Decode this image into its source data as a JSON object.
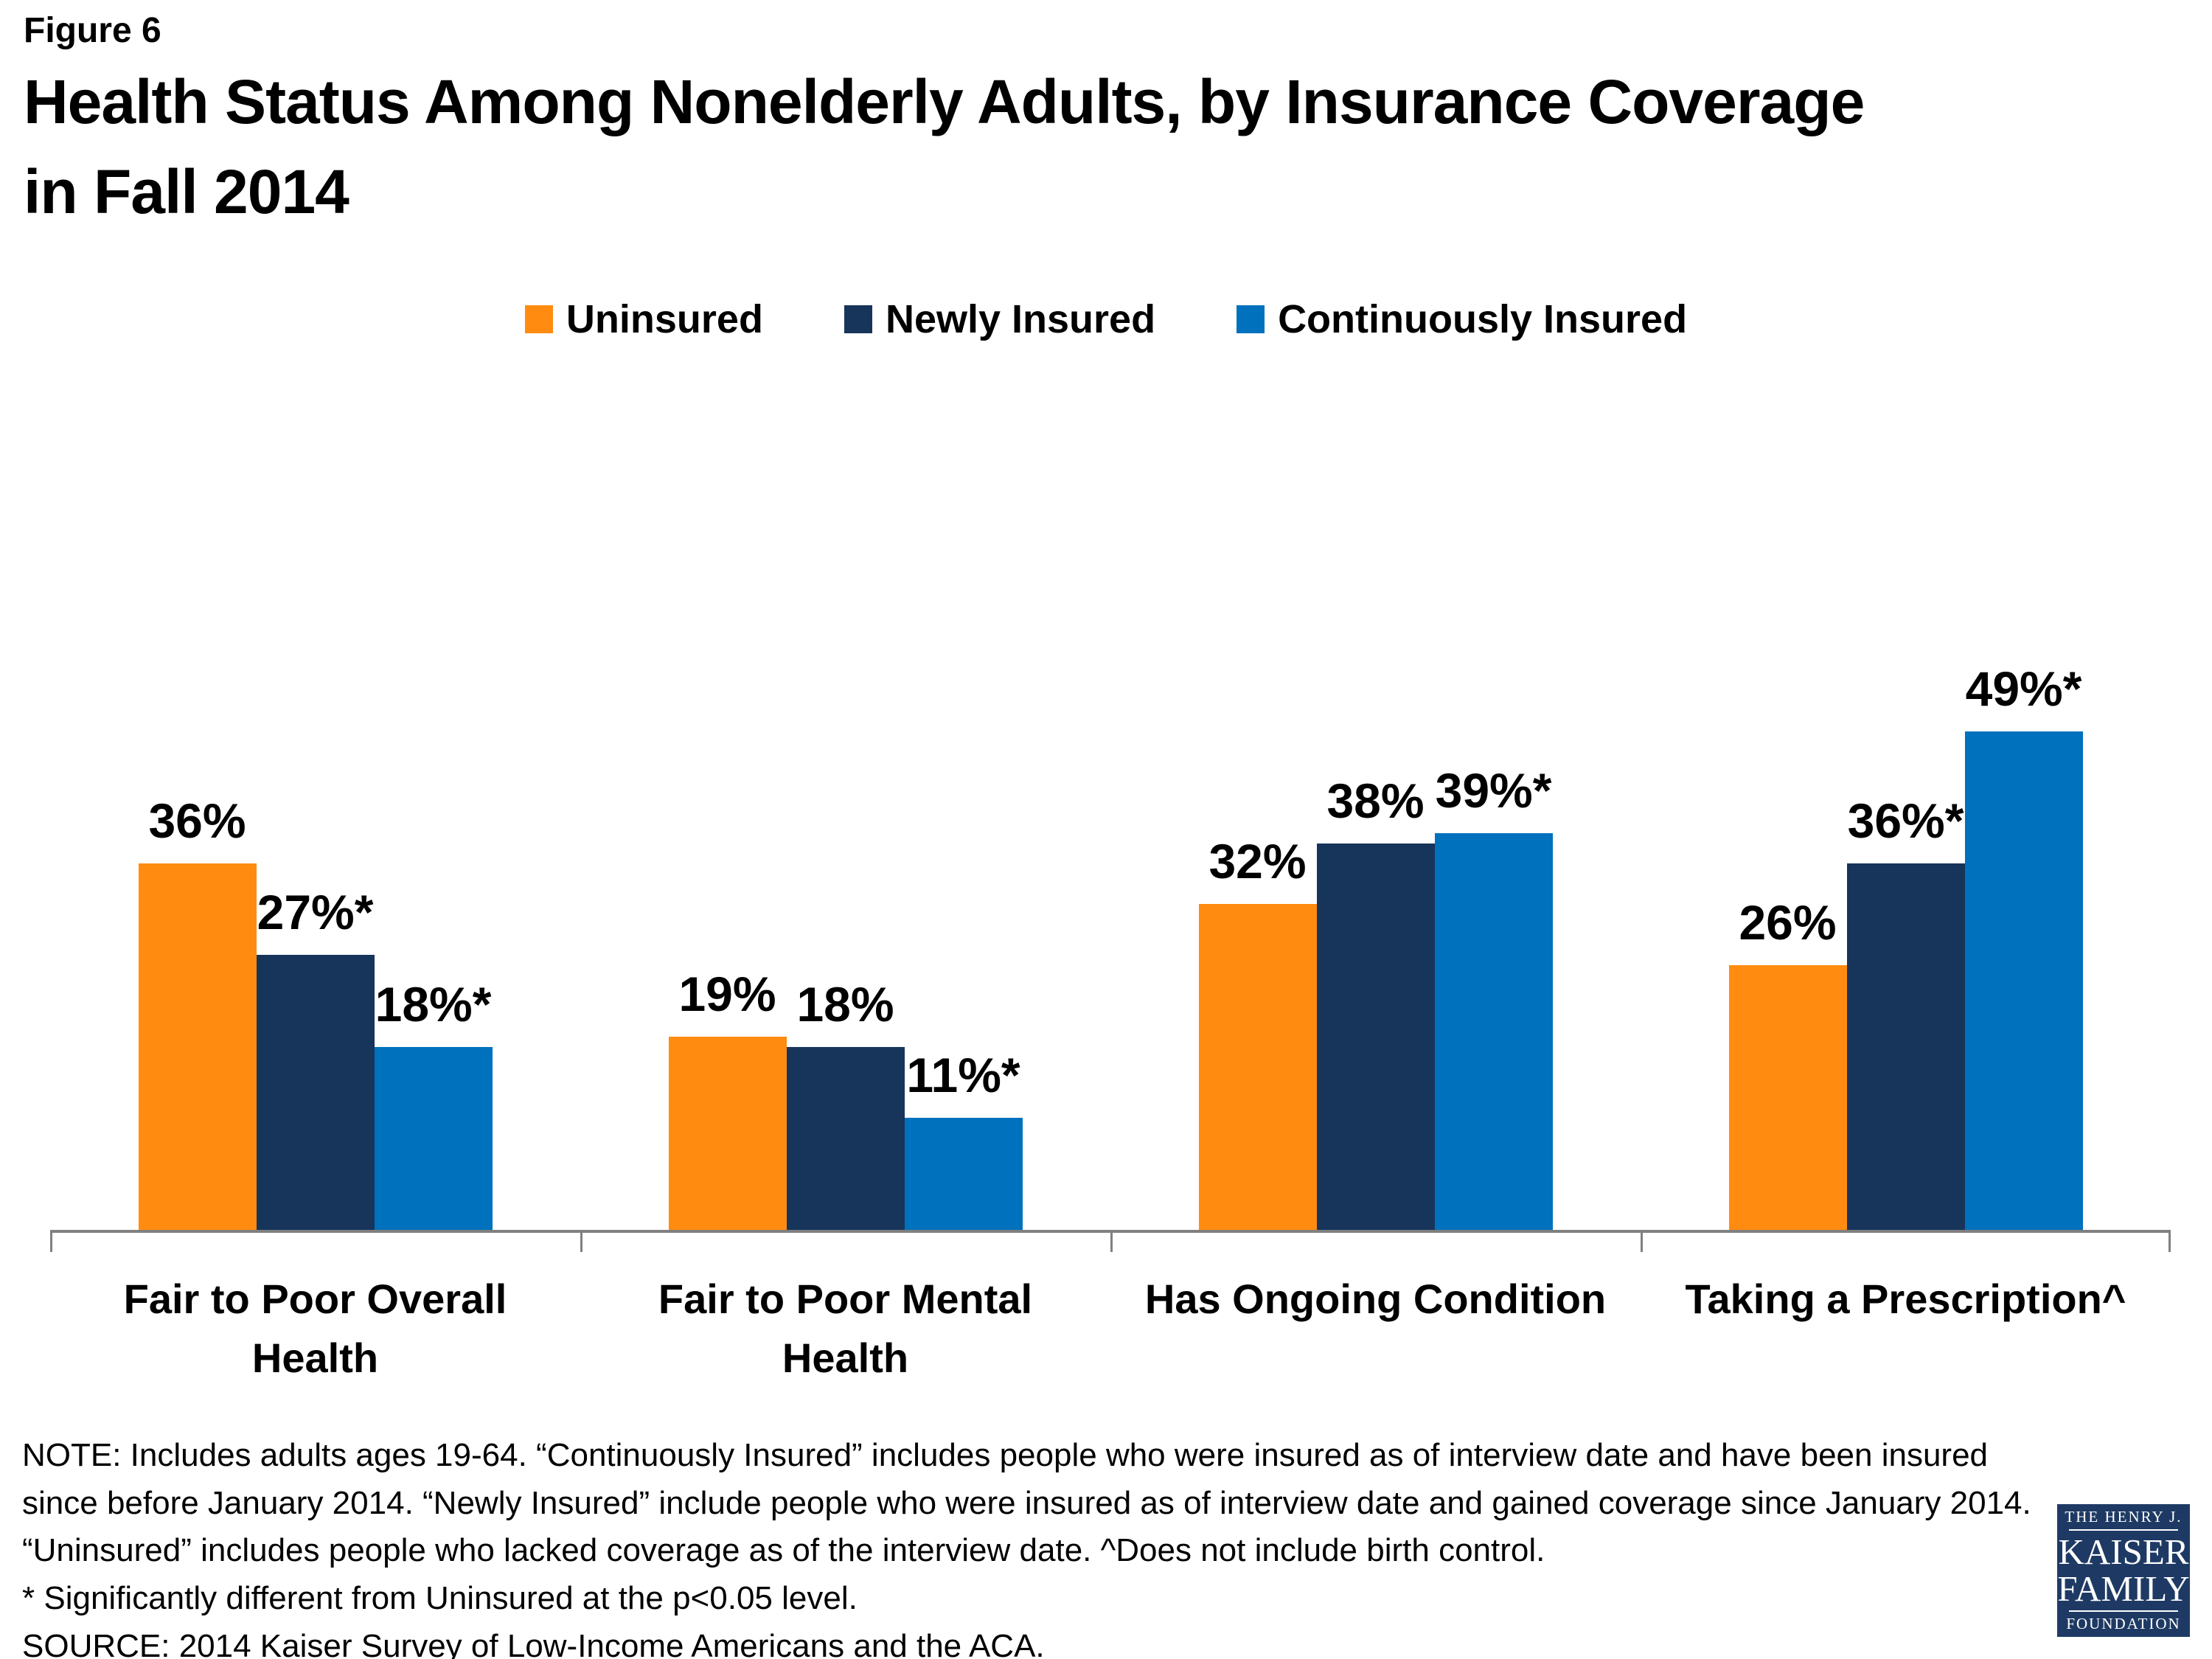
{
  "figure_label": "Figure 6",
  "title_lines": {
    "line1": "Health Status Among Nonelderly Adults, by Insurance Coverage",
    "line2": "in Fall 2014"
  },
  "legend": {
    "items": [
      {
        "label": "Uninsured",
        "color": "#FF8C10"
      },
      {
        "label": "Newly Insured",
        "color": "#17345A"
      },
      {
        "label": "Continuously Insured",
        "color": "#0071BC"
      }
    ]
  },
  "chart_data": {
    "type": "bar",
    "categories": [
      "Fair to Poor Overall\nHealth",
      "Fair to Poor Mental\nHealth",
      "Has Ongoing Condition",
      "Taking a Prescription^"
    ],
    "series": [
      {
        "name": "Uninsured",
        "color": "#FF8C10",
        "values": [
          36,
          19,
          32,
          26
        ],
        "data_labels": [
          "36%",
          "19%",
          "32%",
          "26%"
        ]
      },
      {
        "name": "Newly Insured",
        "color": "#17345A",
        "values": [
          27,
          18,
          38,
          36
        ],
        "data_labels": [
          "27%*",
          "18%",
          "38%",
          "36%*"
        ]
      },
      {
        "name": "Continuously Insured",
        "color": "#0071BC",
        "values": [
          18,
          11,
          39,
          49
        ],
        "data_labels": [
          "18%*",
          "11%*",
          "39%*",
          "49%*"
        ]
      }
    ],
    "ylim": [
      0,
      55
    ],
    "gridlines": false,
    "y_axis_visible": false,
    "data_labels_visible": true,
    "legend_position": "top",
    "axis_color": "#808080"
  },
  "notes": {
    "note": "NOTE: Includes adults ages 19-64. “Continuously Insured” includes people who were insured as of interview date and have been insured since before January 2014. “Newly Insured” include people who were insured as of interview date and gained coverage since January 2014. “Uninsured” includes people who lacked coverage as of the interview date. ^Does not include birth control.",
    "significance": "* Significantly different from Uninsured at the p<0.05 level.",
    "source": "SOURCE: 2014 Kaiser Survey of Low-Income Americans and the ACA."
  },
  "logo": {
    "line1": "THE HENRY J.",
    "line2": "KAISER",
    "line3": "FAMILY",
    "line4": "FOUNDATION",
    "background_color": "#1E3A64"
  }
}
